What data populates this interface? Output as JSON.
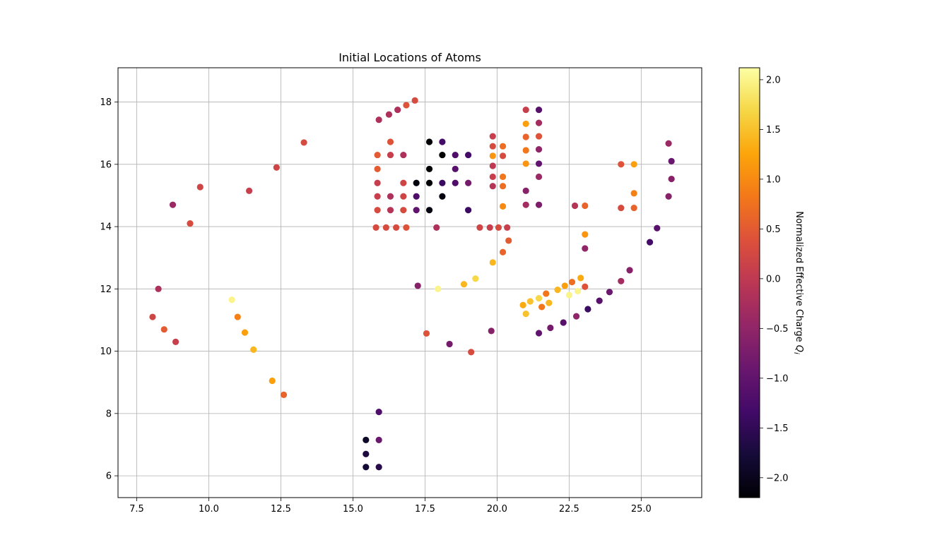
{
  "chart_data": {
    "type": "scatter",
    "title": "Initial Locations of Atoms",
    "xlabel": "",
    "ylabel": "",
    "xlim": [
      6.85,
      27.1
    ],
    "ylim": [
      5.3,
      19.1
    ],
    "x_ticks": [
      7.5,
      10.0,
      12.5,
      15.0,
      17.5,
      20.0,
      22.5,
      25.0
    ],
    "x_tick_labels": [
      "7.5",
      "10.0",
      "12.5",
      "15.0",
      "17.5",
      "20.0",
      "22.5",
      "25.0"
    ],
    "y_ticks": [
      6,
      8,
      10,
      12,
      14,
      16,
      18
    ],
    "y_tick_labels": [
      "6",
      "8",
      "10",
      "12",
      "14",
      "16",
      "18"
    ],
    "grid": true,
    "colormap": "inferno",
    "colorbar": {
      "label": "Normalized Effective Charge",
      "label_symbol": "Q",
      "label_symbol_sub": "i",
      "range": [
        -2.2,
        2.12
      ],
      "ticks": [
        -2.0,
        -1.5,
        -1.0,
        -0.5,
        0.0,
        0.5,
        1.0,
        1.5,
        2.0
      ],
      "tick_labels": [
        "−2.0",
        "−1.5",
        "−1.0",
        "−0.5",
        "0.0",
        "0.5",
        "1.0",
        "1.5",
        "2.0"
      ]
    },
    "points": [
      {
        "x": 8.05,
        "y": 11.1,
        "c": 0.2
      },
      {
        "x": 8.25,
        "y": 12.0,
        "c": -0.2
      },
      {
        "x": 8.45,
        "y": 10.7,
        "c": 0.5
      },
      {
        "x": 8.75,
        "y": 14.7,
        "c": -0.4
      },
      {
        "x": 8.85,
        "y": 10.3,
        "c": 0.1
      },
      {
        "x": 9.35,
        "y": 14.1,
        "c": 0.3
      },
      {
        "x": 9.7,
        "y": 15.27,
        "c": 0.2
      },
      {
        "x": 11.4,
        "y": 15.15,
        "c": 0.1
      },
      {
        "x": 12.35,
        "y": 15.9,
        "c": 0.2
      },
      {
        "x": 13.3,
        "y": 16.7,
        "c": 0.3
      },
      {
        "x": 10.8,
        "y": 11.65,
        "c": 2.0
      },
      {
        "x": 11.0,
        "y": 11.1,
        "c": 0.9
      },
      {
        "x": 11.25,
        "y": 10.6,
        "c": 1.2
      },
      {
        "x": 11.55,
        "y": 10.05,
        "c": 1.4
      },
      {
        "x": 12.2,
        "y": 9.05,
        "c": 1.2
      },
      {
        "x": 12.6,
        "y": 8.6,
        "c": 0.6
      },
      {
        "x": 15.45,
        "y": 7.15,
        "c": -1.9
      },
      {
        "x": 15.45,
        "y": 6.7,
        "c": -1.7
      },
      {
        "x": 15.45,
        "y": 6.28,
        "c": -1.8
      },
      {
        "x": 15.9,
        "y": 8.05,
        "c": -1.2
      },
      {
        "x": 15.9,
        "y": 7.15,
        "c": -0.9
      },
      {
        "x": 15.9,
        "y": 6.28,
        "c": -1.6
      },
      {
        "x": 15.9,
        "y": 17.43,
        "c": -0.2
      },
      {
        "x": 16.25,
        "y": 17.6,
        "c": -0.2
      },
      {
        "x": 16.55,
        "y": 17.75,
        "c": -0.2
      },
      {
        "x": 16.85,
        "y": 17.9,
        "c": 0.4
      },
      {
        "x": 17.15,
        "y": 18.05,
        "c": 0.3
      },
      {
        "x": 15.85,
        "y": 16.3,
        "c": 0.5
      },
      {
        "x": 15.85,
        "y": 15.85,
        "c": 0.5
      },
      {
        "x": 15.85,
        "y": 15.4,
        "c": 0.1
      },
      {
        "x": 15.85,
        "y": 14.97,
        "c": 0.1
      },
      {
        "x": 15.85,
        "y": 14.53,
        "c": 0.3
      },
      {
        "x": 16.3,
        "y": 16.72,
        "c": 0.4
      },
      {
        "x": 16.3,
        "y": 16.3,
        "c": 0.1
      },
      {
        "x": 16.3,
        "y": 14.97,
        "c": -0.2
      },
      {
        "x": 16.3,
        "y": 14.53,
        "c": -0.1
      },
      {
        "x": 16.75,
        "y": 16.3,
        "c": -0.2
      },
      {
        "x": 16.75,
        "y": 15.4,
        "c": 0.2
      },
      {
        "x": 16.75,
        "y": 14.97,
        "c": 0.2
      },
      {
        "x": 16.75,
        "y": 14.53,
        "c": 0.3
      },
      {
        "x": 17.2,
        "y": 15.4,
        "c": -2.1
      },
      {
        "x": 17.2,
        "y": 14.97,
        "c": -1.2
      },
      {
        "x": 17.2,
        "y": 14.53,
        "c": -1.0
      },
      {
        "x": 17.65,
        "y": 16.72,
        "c": -2.2
      },
      {
        "x": 17.65,
        "y": 15.85,
        "c": -2.2
      },
      {
        "x": 17.65,
        "y": 15.4,
        "c": -2.2
      },
      {
        "x": 17.65,
        "y": 14.53,
        "c": -2.1
      },
      {
        "x": 18.1,
        "y": 16.72,
        "c": -1.3
      },
      {
        "x": 18.1,
        "y": 16.3,
        "c": -2.2
      },
      {
        "x": 18.1,
        "y": 15.4,
        "c": -1.4
      },
      {
        "x": 18.1,
        "y": 14.97,
        "c": -2.1
      },
      {
        "x": 18.55,
        "y": 16.3,
        "c": -1.2
      },
      {
        "x": 18.55,
        "y": 15.85,
        "c": -1.1
      },
      {
        "x": 18.55,
        "y": 15.4,
        "c": -1.2
      },
      {
        "x": 19.0,
        "y": 16.3,
        "c": -1.3
      },
      {
        "x": 19.0,
        "y": 15.4,
        "c": -0.8
      },
      {
        "x": 19.0,
        "y": 14.53,
        "c": -1.4
      },
      {
        "x": 15.8,
        "y": 13.97,
        "c": 0.3
      },
      {
        "x": 16.15,
        "y": 13.97,
        "c": 0.3
      },
      {
        "x": 16.5,
        "y": 13.97,
        "c": 0.3
      },
      {
        "x": 16.85,
        "y": 13.97,
        "c": 0.4
      },
      {
        "x": 17.9,
        "y": 13.97,
        "c": -0.2
      },
      {
        "x": 19.4,
        "y": 13.97,
        "c": 0.2
      },
      {
        "x": 19.75,
        "y": 13.97,
        "c": 0.1
      },
      {
        "x": 20.05,
        "y": 13.97,
        "c": 0.3
      },
      {
        "x": 20.35,
        "y": 13.97,
        "c": 0.1
      },
      {
        "x": 19.85,
        "y": 16.9,
        "c": 0.1
      },
      {
        "x": 19.85,
        "y": 16.58,
        "c": 0.3
      },
      {
        "x": 19.85,
        "y": 16.27,
        "c": 1.1
      },
      {
        "x": 19.85,
        "y": 15.95,
        "c": 0.0
      },
      {
        "x": 19.85,
        "y": 15.6,
        "c": 0.1
      },
      {
        "x": 19.85,
        "y": 15.3,
        "c": -0.1
      },
      {
        "x": 20.2,
        "y": 16.58,
        "c": 0.7
      },
      {
        "x": 20.2,
        "y": 16.27,
        "c": 0.3
      },
      {
        "x": 20.2,
        "y": 15.6,
        "c": 0.8
      },
      {
        "x": 20.2,
        "y": 15.3,
        "c": 0.7
      },
      {
        "x": 20.2,
        "y": 14.65,
        "c": 1.0
      },
      {
        "x": 20.4,
        "y": 13.55,
        "c": 0.5
      },
      {
        "x": 20.2,
        "y": 13.18,
        "c": 0.6
      },
      {
        "x": 19.85,
        "y": 12.85,
        "c": 1.4
      },
      {
        "x": 19.25,
        "y": 12.33,
        "c": 1.7
      },
      {
        "x": 18.85,
        "y": 12.15,
        "c": 1.4
      },
      {
        "x": 17.95,
        "y": 12.0,
        "c": 2.0
      },
      {
        "x": 17.25,
        "y": 12.1,
        "c": -0.6
      },
      {
        "x": 17.55,
        "y": 10.57,
        "c": 0.4
      },
      {
        "x": 18.35,
        "y": 10.23,
        "c": -0.8
      },
      {
        "x": 19.1,
        "y": 9.97,
        "c": 0.3
      },
      {
        "x": 19.8,
        "y": 10.65,
        "c": -0.6
      },
      {
        "x": 21.0,
        "y": 17.75,
        "c": 0.1
      },
      {
        "x": 21.0,
        "y": 17.3,
        "c": 1.2
      },
      {
        "x": 21.0,
        "y": 16.88,
        "c": 0.6
      },
      {
        "x": 21.0,
        "y": 16.45,
        "c": 0.8
      },
      {
        "x": 21.0,
        "y": 16.02,
        "c": 1.1
      },
      {
        "x": 21.0,
        "y": 15.15,
        "c": -0.6
      },
      {
        "x": 21.0,
        "y": 14.7,
        "c": -0.3
      },
      {
        "x": 21.45,
        "y": 17.75,
        "c": -1.1
      },
      {
        "x": 21.45,
        "y": 17.33,
        "c": -0.3
      },
      {
        "x": 21.45,
        "y": 16.9,
        "c": 0.4
      },
      {
        "x": 21.45,
        "y": 16.48,
        "c": -0.5
      },
      {
        "x": 21.45,
        "y": 16.02,
        "c": -1.0
      },
      {
        "x": 21.45,
        "y": 15.6,
        "c": -0.4
      },
      {
        "x": 21.45,
        "y": 14.7,
        "c": -0.7
      },
      {
        "x": 22.7,
        "y": 14.67,
        "c": -0.1
      },
      {
        "x": 23.05,
        "y": 14.67,
        "c": 0.6
      },
      {
        "x": 23.05,
        "y": 13.75,
        "c": 1.1
      },
      {
        "x": 23.05,
        "y": 13.3,
        "c": -0.5
      },
      {
        "x": 24.3,
        "y": 16.0,
        "c": 0.4
      },
      {
        "x": 24.3,
        "y": 14.6,
        "c": 0.3
      },
      {
        "x": 24.75,
        "y": 16.0,
        "c": 1.2
      },
      {
        "x": 24.75,
        "y": 15.07,
        "c": 0.9
      },
      {
        "x": 24.75,
        "y": 14.6,
        "c": 0.6
      },
      {
        "x": 20.9,
        "y": 11.48,
        "c": 1.3
      },
      {
        "x": 21.0,
        "y": 11.2,
        "c": 1.5
      },
      {
        "x": 21.15,
        "y": 11.6,
        "c": 1.5
      },
      {
        "x": 21.45,
        "y": 11.7,
        "c": 1.7
      },
      {
        "x": 21.55,
        "y": 11.42,
        "c": 0.8
      },
      {
        "x": 21.7,
        "y": 11.85,
        "c": 0.8
      },
      {
        "x": 21.8,
        "y": 11.55,
        "c": 1.4
      },
      {
        "x": 22.1,
        "y": 11.97,
        "c": 1.4
      },
      {
        "x": 22.35,
        "y": 12.1,
        "c": 1.2
      },
      {
        "x": 22.5,
        "y": 11.8,
        "c": 2.0
      },
      {
        "x": 22.6,
        "y": 12.22,
        "c": 0.7
      },
      {
        "x": 22.8,
        "y": 11.93,
        "c": 2.0
      },
      {
        "x": 22.9,
        "y": 12.35,
        "c": 1.3
      },
      {
        "x": 23.05,
        "y": 12.07,
        "c": 0.4
      },
      {
        "x": 21.45,
        "y": 10.58,
        "c": -1.0
      },
      {
        "x": 21.85,
        "y": 10.75,
        "c": -0.8
      },
      {
        "x": 22.3,
        "y": 10.92,
        "c": -1.1
      },
      {
        "x": 22.75,
        "y": 11.12,
        "c": -0.5
      },
      {
        "x": 23.15,
        "y": 11.35,
        "c": -1.4
      },
      {
        "x": 23.55,
        "y": 11.62,
        "c": -1.1
      },
      {
        "x": 23.9,
        "y": 11.9,
        "c": -0.9
      },
      {
        "x": 24.3,
        "y": 12.25,
        "c": -0.3
      },
      {
        "x": 24.6,
        "y": 12.6,
        "c": -0.6
      },
      {
        "x": 25.3,
        "y": 13.5,
        "c": -1.3
      },
      {
        "x": 25.55,
        "y": 13.95,
        "c": -1.1
      },
      {
        "x": 25.95,
        "y": 16.67,
        "c": -0.4
      },
      {
        "x": 26.05,
        "y": 16.1,
        "c": -0.9
      },
      {
        "x": 26.05,
        "y": 15.53,
        "c": -0.6
      },
      {
        "x": 25.95,
        "y": 14.97,
        "c": -0.6
      }
    ]
  }
}
